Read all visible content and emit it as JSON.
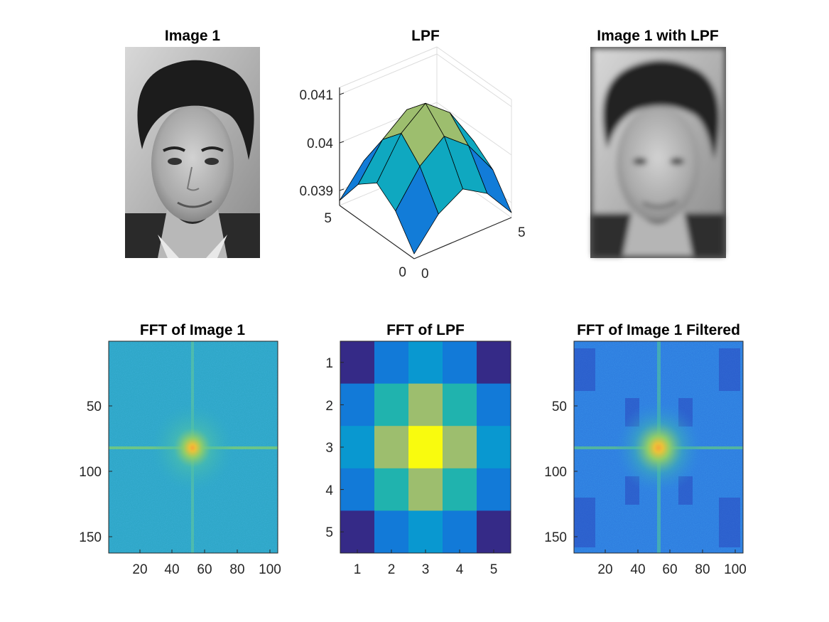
{
  "figure": {
    "background": "#ffffff",
    "panels": [
      {
        "key": "image1",
        "title": "Image 1"
      },
      {
        "key": "lpf",
        "title": "LPF"
      },
      {
        "key": "image1_lpf",
        "title": "Image 1 with LPF"
      },
      {
        "key": "fft_image1",
        "title": "FFT of Image 1"
      },
      {
        "key": "fft_lpf",
        "title": "FFT of LPF"
      },
      {
        "key": "fft_image1_filtered",
        "title": "FFT of Image 1 Filtered"
      }
    ]
  },
  "chart_data": [
    {
      "type": "image",
      "title": "Image 1",
      "content": "grayscale portrait photo (sharp)",
      "colormap": "gray"
    },
    {
      "type": "surface",
      "title": "LPF",
      "colormap": "parula",
      "x_ticks": [
        "0",
        "5"
      ],
      "y_ticks": [
        "0",
        "5"
      ],
      "z_ticks": [
        "0.039",
        "0.04",
        "0.041"
      ],
      "zlim": [
        0.0389,
        0.0413
      ],
      "grid": true,
      "z_values": [
        [
          0.039,
          0.0396,
          0.0399,
          0.0396,
          0.039
        ],
        [
          0.0396,
          0.0403,
          0.0407,
          0.0403,
          0.0396
        ],
        [
          0.0399,
          0.0407,
          0.0411,
          0.0407,
          0.0399
        ],
        [
          0.0396,
          0.0403,
          0.0407,
          0.0403,
          0.0396
        ],
        [
          0.039,
          0.0396,
          0.0399,
          0.0396,
          0.039
        ]
      ]
    },
    {
      "type": "image",
      "title": "Image 1 with LPF",
      "content": "grayscale portrait photo (blurred by low-pass filter)",
      "colormap": "gray"
    },
    {
      "type": "heatmap",
      "title": "FFT of Image 1",
      "colormap": "parula",
      "x_ticks": [
        20,
        40,
        60,
        80,
        100
      ],
      "y_ticks": [
        50,
        100,
        150
      ],
      "xlim": [
        0.5,
        104.5
      ],
      "ylim": [
        0.5,
        162.5
      ],
      "center": [
        53,
        82
      ],
      "description": "log-magnitude spectrum, bright yellow-orange center with horizontal and vertical cross lines"
    },
    {
      "type": "heatmap",
      "title": "FFT of LPF",
      "colormap": "parula",
      "x_ticks": [
        1,
        2,
        3,
        4,
        5
      ],
      "y_ticks": [
        1,
        2,
        3,
        4,
        5
      ],
      "values": [
        [
          0.039,
          0.0396,
          0.0399,
          0.0396,
          0.039
        ],
        [
          0.0396,
          0.0403,
          0.0407,
          0.0403,
          0.0396
        ],
        [
          0.0399,
          0.0407,
          0.0411,
          0.0407,
          0.0399
        ],
        [
          0.0396,
          0.0403,
          0.0407,
          0.0403,
          0.0396
        ],
        [
          0.039,
          0.0396,
          0.0399,
          0.0396,
          0.039
        ]
      ]
    },
    {
      "type": "heatmap",
      "title": "FFT of Image 1 Filtered",
      "colormap": "parula",
      "x_ticks": [
        20,
        40,
        60,
        80,
        100
      ],
      "y_ticks": [
        50,
        100,
        150
      ],
      "xlim": [
        0.5,
        104.5
      ],
      "ylim": [
        0.5,
        162.5
      ],
      "center": [
        53,
        82
      ],
      "description": "filtered log-magnitude spectrum, bright center with cross lines and periodic dark blue blocks"
    }
  ]
}
